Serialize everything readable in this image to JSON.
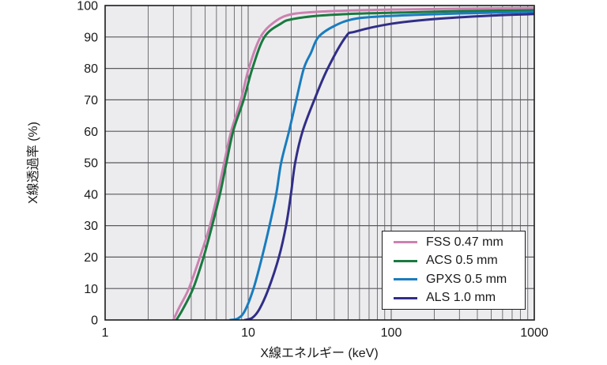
{
  "chart_data": {
    "type": "line",
    "title": "",
    "xlabel": "X線エネルギー (keV)",
    "ylabel": "X線透過率 (%)",
    "x_scale": "log",
    "xlim": [
      1,
      1000
    ],
    "ylim": [
      0,
      100
    ],
    "x_ticks": {
      "values": [
        1,
        10,
        100,
        1000
      ],
      "labels": [
        "1",
        "10",
        "100",
        "1000"
      ]
    },
    "y_ticks": {
      "values": [
        0,
        10,
        20,
        30,
        40,
        50,
        60,
        70,
        80,
        90,
        100
      ],
      "labels": [
        "0",
        "10",
        "20",
        "30",
        "40",
        "50",
        "60",
        "70",
        "80",
        "90",
        "100"
      ]
    },
    "grid": {
      "show": true,
      "minor_x": true,
      "major_y_step": 10
    },
    "panel_color": "#ececee",
    "gridline_color": "#5a5a5e",
    "minor_gridline_color": "#747478",
    "border_color": "#1c1c1c",
    "text_color": "#1a1a1a",
    "legend": {
      "position": "lower-right",
      "border": true,
      "background": "#ffffff"
    },
    "series": [
      {
        "name": "FSS 0.47 mm",
        "color": "#cc82b1",
        "points": [
          [
            3.0,
            0
          ],
          [
            3.3,
            4
          ],
          [
            3.85,
            10
          ],
          [
            4.6,
            20
          ],
          [
            5.4,
            30
          ],
          [
            6.1,
            40
          ],
          [
            6.8,
            50
          ],
          [
            7.6,
            60
          ],
          [
            8.9,
            70
          ],
          [
            10.1,
            80
          ],
          [
            12.2,
            90
          ],
          [
            15.5,
            95
          ],
          [
            20,
            97.2
          ],
          [
            30,
            98.0
          ],
          [
            50,
            98.4
          ],
          [
            100,
            98.7
          ],
          [
            300,
            99.0
          ],
          [
            1000,
            99.2
          ]
        ]
      },
      {
        "name": "ACS 0.5 mm",
        "color": "#1a7a40",
        "points": [
          [
            3.15,
            0
          ],
          [
            3.5,
            3.5
          ],
          [
            4.12,
            10
          ],
          [
            4.88,
            20
          ],
          [
            5.6,
            30
          ],
          [
            6.35,
            40
          ],
          [
            7.05,
            50
          ],
          [
            7.85,
            60
          ],
          [
            9.3,
            70
          ],
          [
            10.7,
            80
          ],
          [
            13.0,
            90
          ],
          [
            17,
            94.3
          ],
          [
            20,
            95.6
          ],
          [
            30,
            96.7
          ],
          [
            50,
            97.3
          ],
          [
            100,
            97.7
          ],
          [
            300,
            98.2
          ],
          [
            1000,
            98.5
          ]
        ]
      },
      {
        "name": "GPXS 0.5 mm",
        "color": "#1a7cbe",
        "points": [
          [
            7.5,
            0
          ],
          [
            8.5,
            0.5
          ],
          [
            9.5,
            3
          ],
          [
            10.9,
            10
          ],
          [
            12.5,
            20
          ],
          [
            14.1,
            30
          ],
          [
            15.7,
            40
          ],
          [
            17.0,
            50
          ],
          [
            19.3,
            60
          ],
          [
            21.7,
            70
          ],
          [
            24.5,
            80
          ],
          [
            27.5,
            85
          ],
          [
            31,
            90
          ],
          [
            40,
            93.5
          ],
          [
            56,
            95.8
          ],
          [
            100,
            96.7
          ],
          [
            300,
            97.5
          ],
          [
            1000,
            98.0
          ]
        ]
      },
      {
        "name": "ALS 1.0 mm",
        "color": "#312e87",
        "points": [
          [
            9.5,
            0
          ],
          [
            10.7,
            0.7
          ],
          [
            12,
            3.5
          ],
          [
            13.9,
            10
          ],
          [
            16.4,
            20
          ],
          [
            18.4,
            30
          ],
          [
            19.9,
            40
          ],
          [
            21.3,
            50
          ],
          [
            24,
            60
          ],
          [
            29,
            70
          ],
          [
            36,
            80
          ],
          [
            48,
            90
          ],
          [
            56,
            91.7
          ],
          [
            100,
            94.2
          ],
          [
            200,
            95.7
          ],
          [
            500,
            96.8
          ],
          [
            1000,
            97.3
          ]
        ]
      }
    ]
  }
}
